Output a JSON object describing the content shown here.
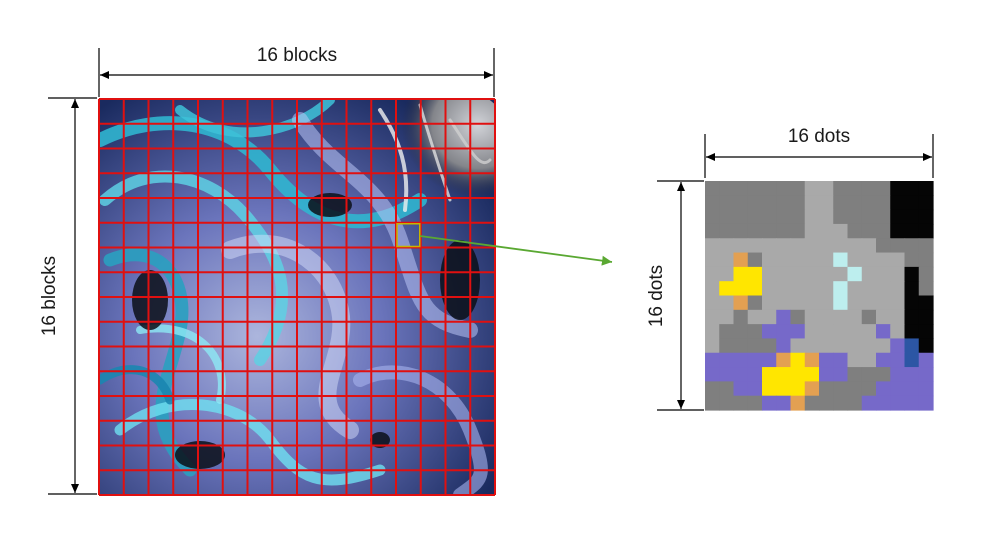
{
  "labels": {
    "main_width": "16 blocks",
    "main_height": "16 blocks",
    "zoom_width": "16 dots",
    "zoom_height": "16 dots"
  },
  "grid": {
    "rows": 16,
    "cols": 16,
    "highlight_row": 5,
    "highlight_col": 12
  },
  "colors": {
    "grid_line": "#e01010",
    "highlight": "#c8b400",
    "arrow": "#5aa832",
    "dimension_line": "#000000"
  },
  "zoom": {
    "palette": {
      "g": "#7f7f7f",
      "l": "#a9a9a9",
      "p": "#7669c9",
      "k": "#050505",
      "y": "#ffe600",
      "o": "#e3a052",
      "c": "#bdeeee",
      "b": "#2c56a4",
      "t": "#1c6f92"
    },
    "rows": [
      "gggggggllggggkkk",
      "gggggggllggggkkk",
      "gggggggllggggkkk",
      "ggggggglllgggkkk",
      "llllllllllllgggg",
      "lloglllllcllllgg",
      "llyyllllllclllkg",
      "lyyylllllcllllkg",
      "lloglllllcllllkk",
      "llgllpgllllgllkk",
      "lgggppplllllplkk",
      "lggggplllllllpbk",
      "pppppoyoppllppbp",
      "ppppyyyyppgggppp",
      "ggppyyyoggggpppp",
      "ggggppoggggppppp"
    ]
  }
}
